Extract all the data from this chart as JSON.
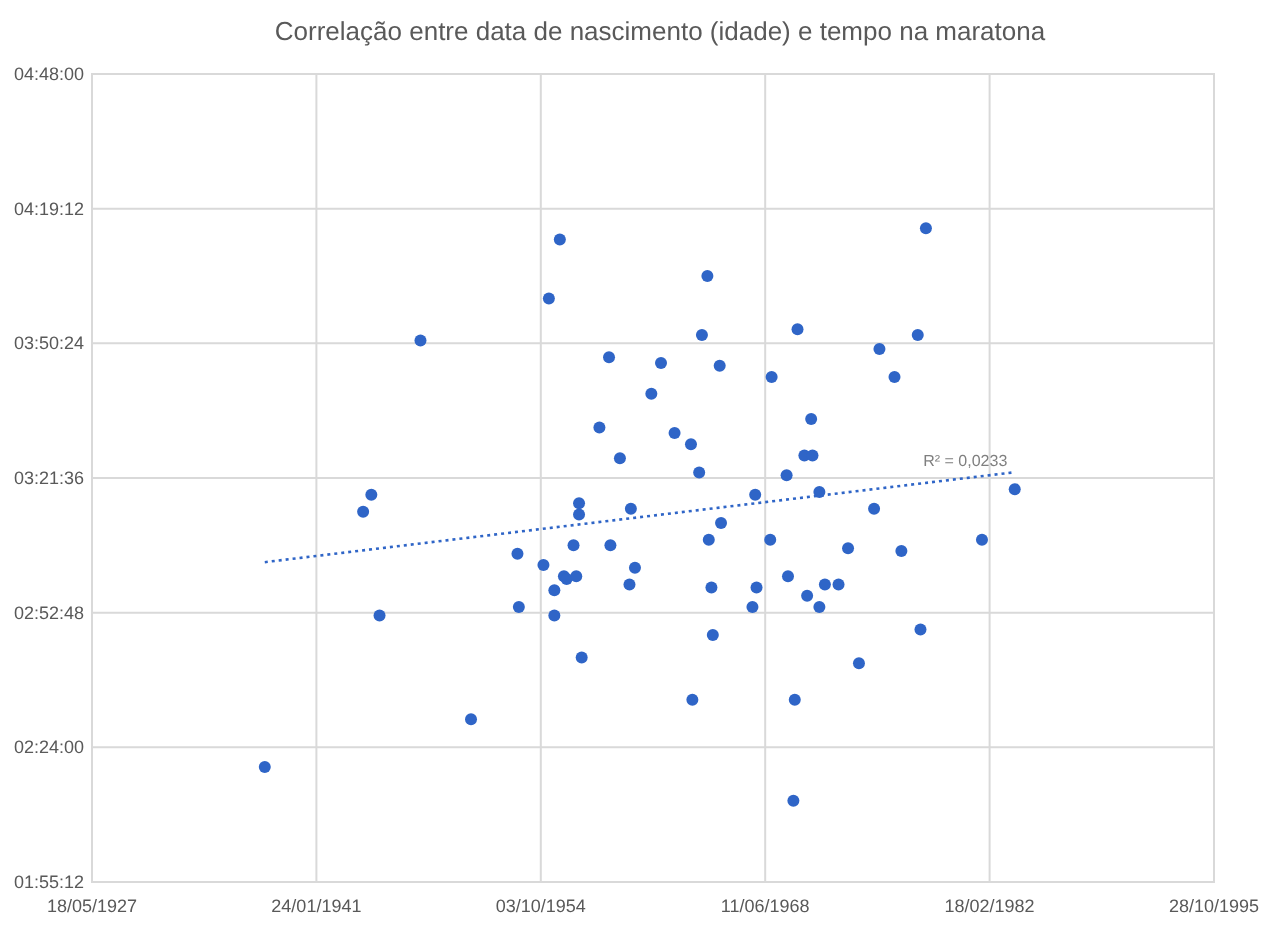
{
  "chart_data": {
    "type": "scatter",
    "title": "Correlação entre data de nascimento (idade) e tempo na maratona",
    "xlim": [
      "1927-05-18",
      "1995-10-28"
    ],
    "xticks": [
      {
        "value": "1927-05-18",
        "label": "18/05/1927"
      },
      {
        "value": "1941-01-24",
        "label": "24/01/1941"
      },
      {
        "value": "1954-10-03",
        "label": "03/10/1954"
      },
      {
        "value": "1968-06-11",
        "label": "11/06/1968"
      },
      {
        "value": "1982-02-18",
        "label": "18/02/1982"
      },
      {
        "value": "1995-10-28",
        "label": "28/10/1995"
      }
    ],
    "ylim": [
      1.92,
      4.8
    ],
    "yticks": [
      {
        "value": 1.92,
        "label": "01:55:12"
      },
      {
        "value": 2.4,
        "label": "02:24:00"
      },
      {
        "value": 2.88,
        "label": "02:52:48"
      },
      {
        "value": 3.36,
        "label": "03:21:36"
      },
      {
        "value": 3.84,
        "label": "03:50:24"
      },
      {
        "value": 4.32,
        "label": "04:19:12"
      },
      {
        "value": 4.8,
        "label": "04:48:00"
      }
    ],
    "grid": true,
    "marker": "circle",
    "series": [
      {
        "color": "#2f65c7",
        "x": [
          "1937-12",
          "1943-12",
          "1944-06",
          "1944-12",
          "1947-06",
          "1950-07",
          "1953-05",
          "1953-06",
          "1954-12",
          "1955-04",
          "1955-08",
          "1955-08",
          "1955-12",
          "1956-03",
          "1956-05",
          "1956-10",
          "1956-12",
          "1957-02",
          "1957-02",
          "1957-04",
          "1958-05",
          "1958-12",
          "1959-01",
          "1959-08",
          "1960-03",
          "1960-04",
          "1960-07",
          "1961-07",
          "1962-02",
          "1962-12",
          "1963-12",
          "1964-01",
          "1964-06",
          "1964-08",
          "1964-12",
          "1965-01",
          "1965-03",
          "1965-04",
          "1965-09",
          "1965-10",
          "1967-09",
          "1967-11",
          "1967-12",
          "1968-10",
          "1968-11",
          "1969-10",
          "1969-11",
          "1970-03",
          "1970-04",
          "1970-06",
          "1970-11",
          "1971-01",
          "1971-04",
          "1971-05",
          "1971-10",
          "1971-10",
          "1972-02",
          "1972-12",
          "1973-07",
          "1974-03",
          "1975-02",
          "1975-06",
          "1976-05",
          "1976-10",
          "1977-10",
          "1977-12",
          "1978-04",
          "1981-09",
          "1983-09"
        ],
        "values": [
          2.33,
          3.24,
          3.3,
          2.87,
          3.85,
          2.5,
          3.09,
          2.9,
          3.05,
          4.0,
          2.87,
          2.96,
          4.21,
          3.01,
          3.0,
          3.12,
          3.01,
          3.23,
          3.27,
          2.72,
          3.54,
          3.79,
          3.12,
          3.43,
          2.98,
          3.25,
          3.04,
          3.66,
          3.77,
          3.52,
          3.48,
          2.57,
          3.38,
          3.87,
          4.08,
          3.14,
          2.97,
          2.8,
          3.76,
          3.2,
          2.9,
          3.3,
          2.97,
          3.14,
          3.72,
          3.37,
          3.01,
          2.21,
          2.57,
          3.89,
          3.44,
          2.94,
          3.57,
          3.44,
          3.31,
          2.9,
          2.98,
          2.98,
          3.11,
          2.7,
          3.25,
          3.82,
          3.72,
          3.1,
          3.87,
          2.82,
          4.25,
          3.14,
          3.32
        ]
      },
      {
        "type": "line",
        "color": "#2f65c7",
        "line_style": "dotted",
        "marker": "none",
        "x": [
          "1937-12",
          "1983-08"
        ],
        "values": [
          3.06,
          3.38
        ]
      }
    ],
    "annotations": [
      {
        "text": "R² = 0,0233",
        "x": "1983-08",
        "y": 3.38
      }
    ]
  }
}
